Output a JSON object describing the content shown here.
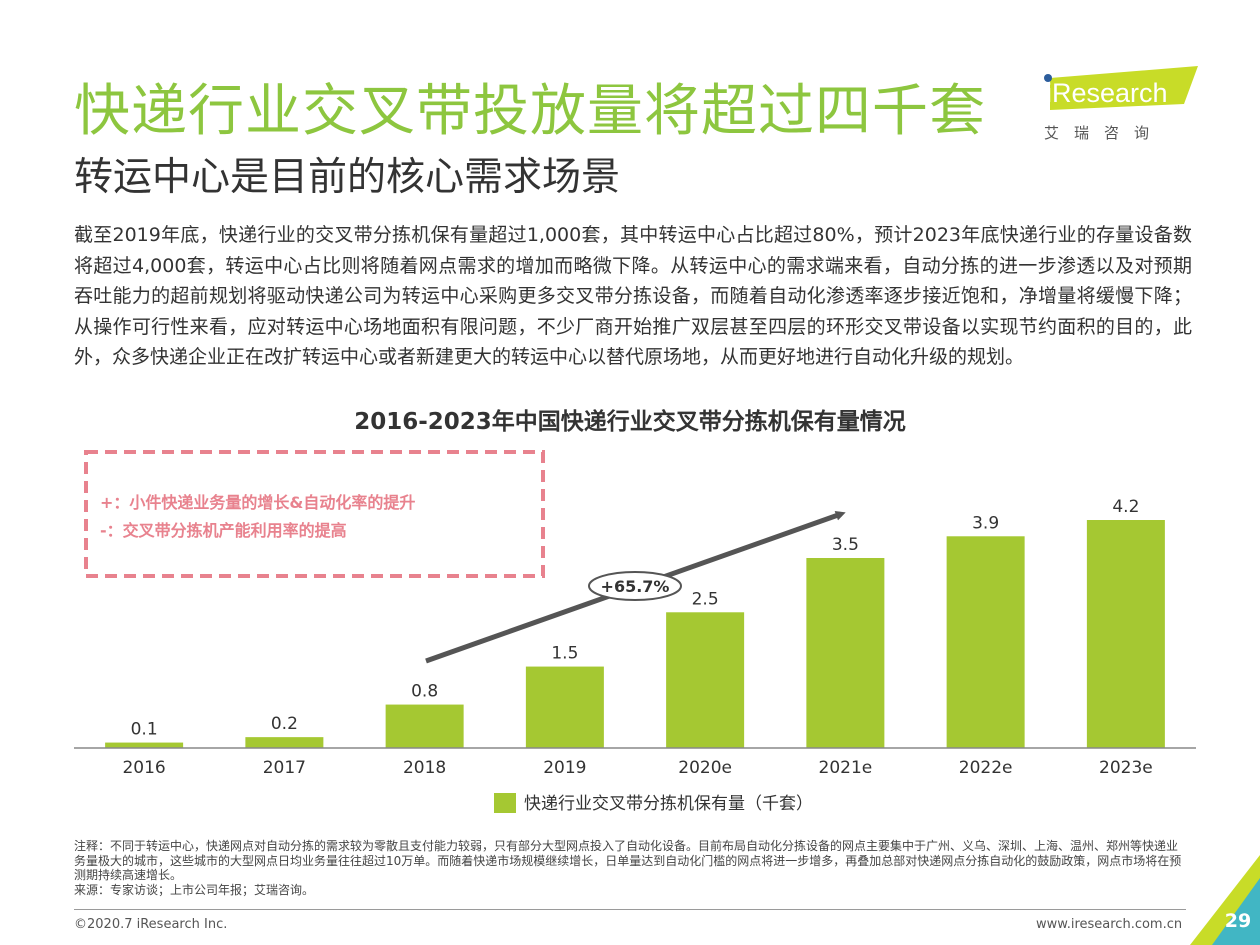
{
  "page": {
    "title": "快递行业交叉带投放量将超过四千套",
    "subtitle": "转运中心是目前的核心需求场景",
    "body": "截至2019年底，快递行业的交叉带分拣机保有量超过1,000套，其中转运中心占比超过80%，预计2023年底快递行业的存量设备数将超过4,000套，转运中心占比则将随着网点需求的增加而略微下降。从转运中心的需求端来看，自动分拣的进一步渗透以及对预期吞吐能力的超前规划将驱动快递公司为转运中心采购更多交叉带分拣设备，而随着自动化渗透率逐步接近饱和，净增量将缓慢下降；从操作可行性来看，应对转运中心场地面积有限问题，不少厂商开始推广双层甚至四层的环形交叉带设备以实现节约面积的目的，此外，众多快递企业正在改扩转运中心或者新建更大的转运中心以替代原场地，从而更好地进行自动化升级的规划。"
  },
  "logo": {
    "brand": "iResearch",
    "brand_cn": "艾瑞咨询",
    "accent": "#c8dc28"
  },
  "chart_data": {
    "type": "bar",
    "title": "2016-2023年中国快递行业交叉带分拣机保有量情况",
    "categories": [
      "2016",
      "2017",
      "2018",
      "2019",
      "2020e",
      "2021e",
      "2022e",
      "2023e"
    ],
    "series": [
      {
        "name": "快递行业交叉带分拣机保有量（千套）",
        "values": [
          0.1,
          0.2,
          0.8,
          1.5,
          2.5,
          3.5,
          3.9,
          4.2
        ],
        "color": "#a5c832"
      }
    ],
    "value_labels": [
      "0.1",
      "0.2",
      "0.8",
      "1.5",
      "2.5",
      "3.5",
      "3.9",
      "4.2"
    ],
    "ylim": [
      0,
      4.2
    ],
    "grid": false,
    "legend": "bottom",
    "annotations": {
      "cagr": "+65.7%",
      "factor_plus": "+：小件快递业务量的增长&自动化率的提升",
      "factor_minus": "-：交叉带分拣机产能利用率的提高"
    }
  },
  "notes": {
    "note": "注释：不同于转运中心，快递网点对自动分拣的需求较为零散且支付能力较弱，只有部分大型网点投入了自动化设备。目前布局自动化分拣设备的网点主要集中于广州、义乌、深圳、上海、温州、郑州等快递业务量极大的城市，这些城市的大型网点日均业务量往往超过10万单。而随着快递市场规模继续增长，日单量达到自动化门槛的网点将进一步增多，再叠加总部对快递网点分拣自动化的鼓励政策，网点市场将在预测期持续高速增长。",
    "source": "来源：专家访谈；上市公司年报；艾瑞咨询。"
  },
  "footer": {
    "copyright": "©2020.7 iResearch Inc.",
    "website": "www.iresearch.com.cn",
    "page_number": "29"
  },
  "colors": {
    "title_green": "#8dc63f",
    "bar_green": "#a5c832",
    "annotation_pink": "#e8828e",
    "arrow_gray": "#555555",
    "corner_teal": "#41b6c4"
  }
}
